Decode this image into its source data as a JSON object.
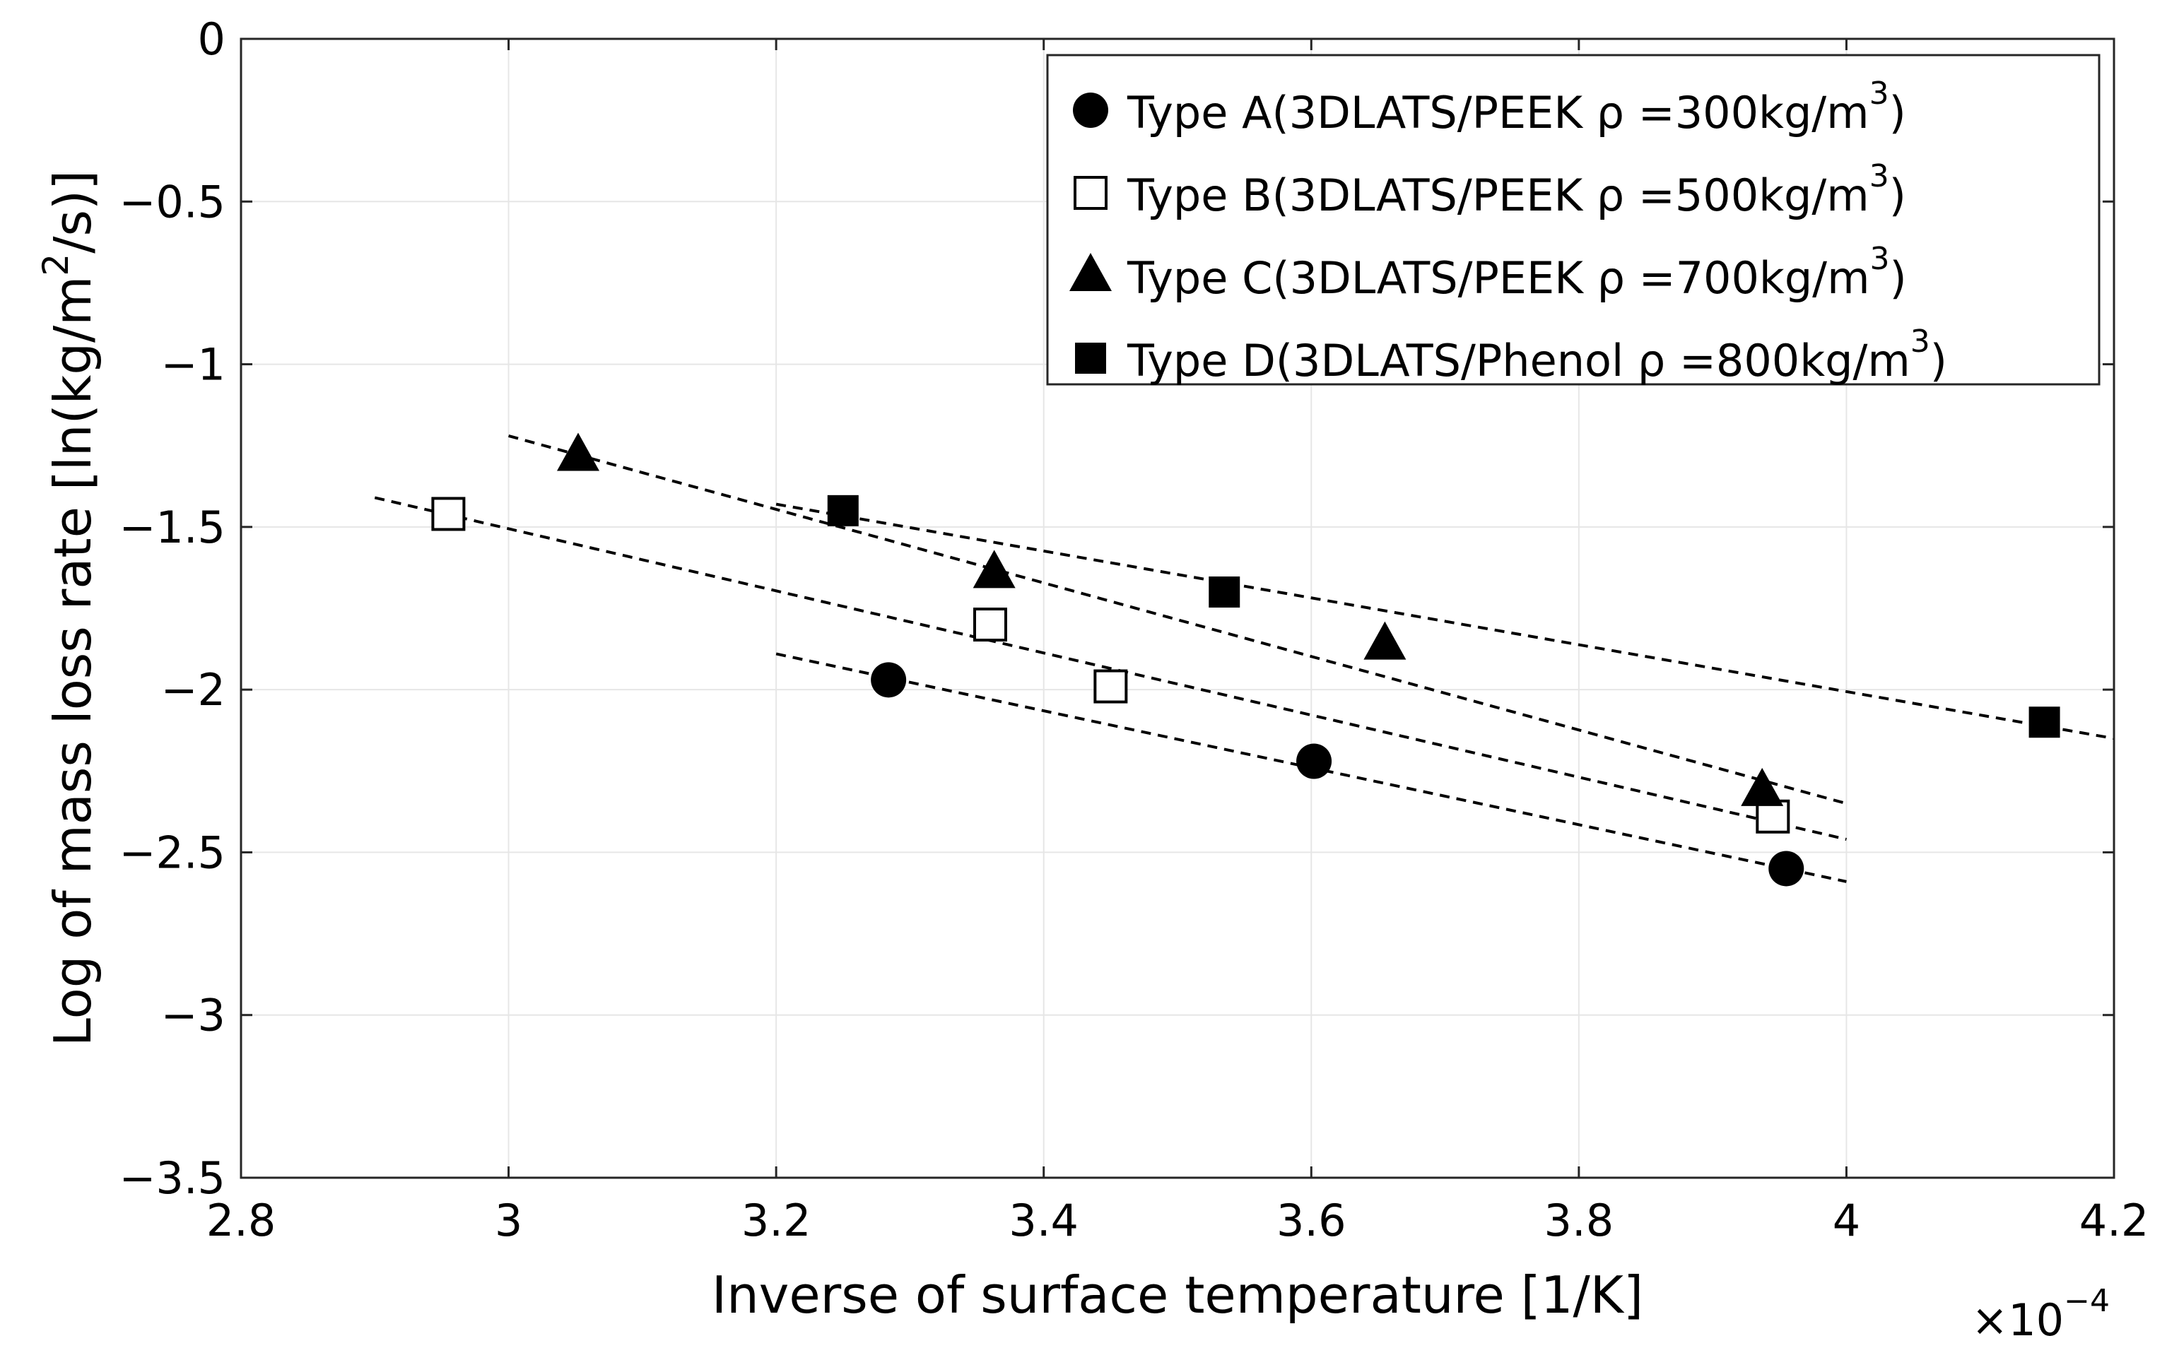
{
  "chart_data": {
    "type": "scatter",
    "xlabel": "Inverse of surface temperature [1/K]",
    "ylabel": "Log of mass loss rate [ln(kg/m² /s)]",
    "ylabel_parts": {
      "prefix": "Log of mass loss rate [ln(kg/m",
      "sup": "2",
      "suffix": "/s)]"
    },
    "x_multiplier": {
      "prefix": "×10",
      "sup": "−4"
    },
    "xlim": [
      2.8,
      4.2
    ],
    "ylim": [
      -3.5,
      0
    ],
    "xticks": [
      2.8,
      3.0,
      3.2,
      3.4,
      3.6,
      3.8,
      4.0,
      4.2
    ],
    "xtick_labels": [
      "2.8",
      "3",
      "3.2",
      "3.4",
      "3.6",
      "3.8",
      "4",
      "4.2"
    ],
    "yticks": [
      0,
      -0.5,
      -1,
      -1.5,
      -2,
      -2.5,
      -3,
      -3.5
    ],
    "ytick_labels": [
      "0",
      "−0.5",
      "−1",
      "−1.5",
      "−2",
      "−2.5",
      "−3",
      "−3.5"
    ],
    "grid": true,
    "legend_position": "top-right",
    "series": [
      {
        "name": "Type A(3DLATS/PEEK ρ=300kg/m³)",
        "label_main": "Type A(3DLATS/PEEK  ρ =300kg/m",
        "label_sup": "3",
        "label_tail": ")",
        "marker": "filled-circle",
        "x": [
          3.284,
          3.602,
          3.955
        ],
        "y": [
          -1.97,
          -2.22,
          -2.55
        ],
        "fit": {
          "x": [
            3.2,
            4.0
          ],
          "y": [
            -1.89,
            -2.59
          ]
        }
      },
      {
        "name": "Type B(3DLATS/PEEK ρ=500kg/m³)",
        "label_main": "Type B(3DLATS/PEEK  ρ =500kg/m",
        "label_sup": "3",
        "label_tail": ")",
        "marker": "open-square",
        "x": [
          2.955,
          3.36,
          3.45,
          3.945
        ],
        "y": [
          -1.46,
          -1.8,
          -1.99,
          -2.39
        ],
        "fit": {
          "x": [
            2.9,
            4.0
          ],
          "y": [
            -1.41,
            -2.46
          ]
        }
      },
      {
        "name": "Type C(3DLATS/PEEK ρ=700kg/m³)",
        "label_main": "Type C(3DLATS/PEEK  ρ =700kg/m",
        "label_sup": "3",
        "label_tail": ")",
        "marker": "filled-triangle",
        "x": [
          3.052,
          3.363,
          3.655,
          3.937
        ],
        "y": [
          -1.28,
          -1.64,
          -1.86,
          -2.31
        ],
        "fit": {
          "x": [
            3.0,
            4.0
          ],
          "y": [
            -1.22,
            -2.35
          ]
        }
      },
      {
        "name": "Type D(3DLATS/Phenol ρ=800kg/m³)",
        "label_main": "Type D(3DLATS/Phenol  ρ =800kg/m",
        "label_sup": "3",
        "label_tail": ")",
        "marker": "filled-square",
        "x": [
          3.25,
          3.535,
          4.148
        ],
        "y": [
          -1.45,
          -1.7,
          -2.1
        ],
        "fit": {
          "x": [
            3.2,
            4.2
          ],
          "y": [
            -1.43,
            -2.15
          ]
        }
      }
    ]
  }
}
